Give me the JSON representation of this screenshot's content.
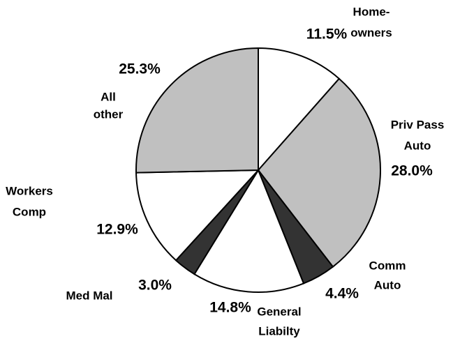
{
  "chart_data": {
    "type": "pie",
    "categories": [
      [
        "Home-",
        "owners"
      ],
      [
        "Priv Pass",
        "Auto"
      ],
      [
        "Comm",
        "Auto"
      ],
      [
        "General",
        "Liabilty"
      ],
      [
        "Med Mal"
      ],
      [
        "Workers",
        "Comp"
      ],
      [
        "All",
        "other"
      ]
    ],
    "values": [
      11.5,
      28.0,
      4.4,
      14.8,
      3.0,
      12.9,
      25.3
    ],
    "value_labels": [
      "11.5%",
      "28.0%",
      "4.4%",
      "14.8%",
      "3.0%",
      "12.9%",
      "25.3%"
    ],
    "colors": [
      "#ffffff",
      "#c0c0c0",
      "#333333",
      "#ffffff",
      "#333333",
      "#ffffff",
      "#c0c0c0"
    ]
  }
}
